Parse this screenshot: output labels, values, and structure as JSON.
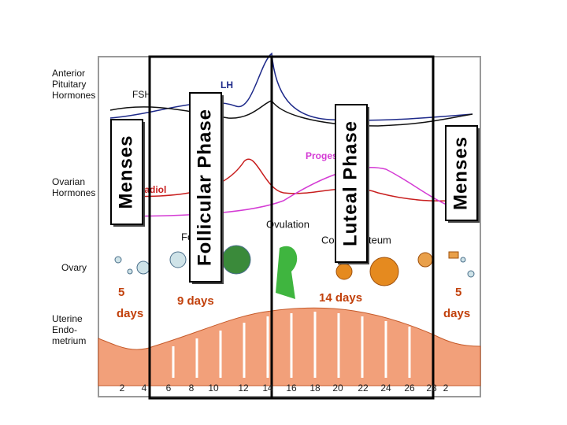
{
  "labels": {
    "pituitary": "Anterior Pituitary Hormones",
    "fsh": "FSH",
    "lh": "LH",
    "ovarian": "Ovarian Hormones",
    "estradiol": "Estradiol",
    "progesterone": "Progesterone",
    "ovulation": "Ovulation",
    "corpus_luteum": "Corpus Luteum",
    "follicle": "Follicle",
    "ovary": "Ovary",
    "uterine": "Uterine Endo-metrium"
  },
  "durations": [
    "5 days",
    "9 days",
    "14 days",
    "5 days"
  ],
  "days": [
    2,
    4,
    6,
    8,
    10,
    12,
    14,
    16,
    18,
    20,
    22,
    24,
    26,
    28,
    2
  ],
  "phases": [
    "Menses",
    "Follicular Phase",
    "Luteal Phase",
    "Menses"
  ]
}
